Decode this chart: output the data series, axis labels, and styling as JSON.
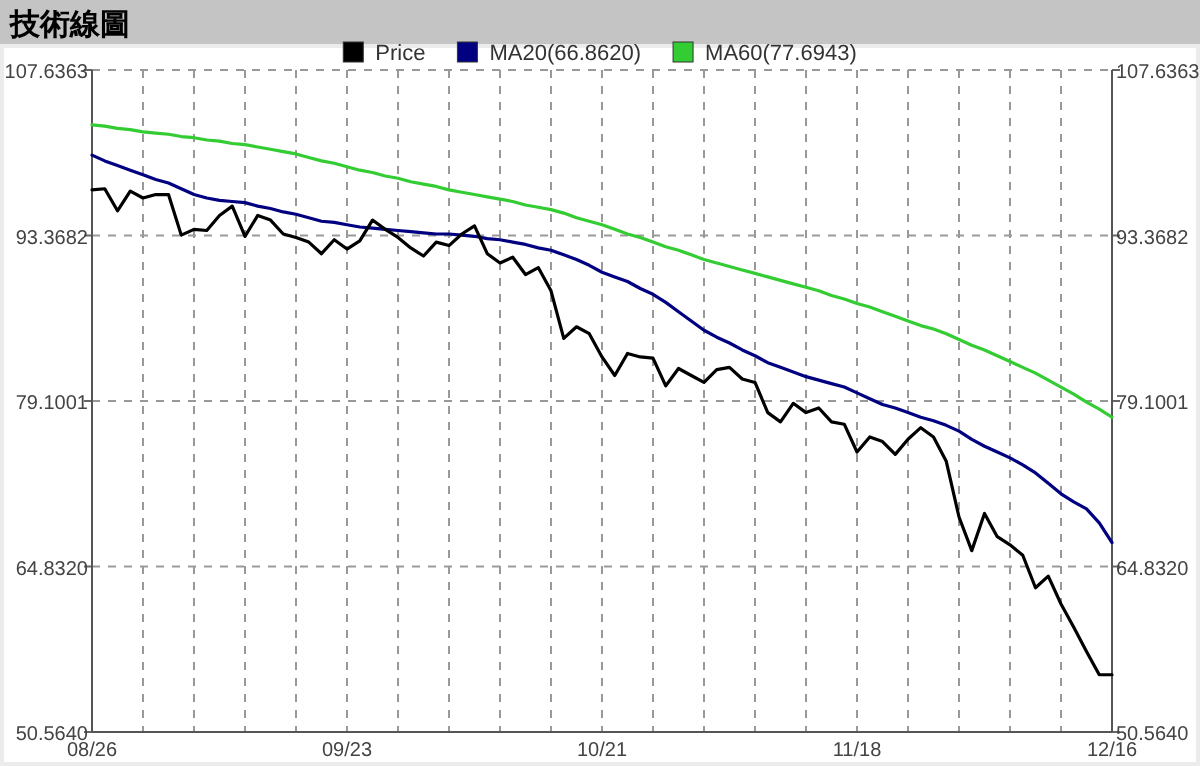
{
  "chart_data": {
    "type": "line",
    "title": "技術線圖",
    "legend": "top",
    "grid": true,
    "line_style": "solid",
    "categories": [
      "08/26",
      null,
      null,
      null,
      null,
      null,
      null,
      null,
      null,
      null,
      null,
      null,
      null,
      null,
      null,
      null,
      null,
      null,
      null,
      null,
      "09/23",
      null,
      null,
      null,
      null,
      null,
      null,
      null,
      null,
      null,
      null,
      null,
      null,
      null,
      null,
      null,
      null,
      null,
      null,
      null,
      "10/21",
      null,
      null,
      null,
      null,
      null,
      null,
      null,
      null,
      null,
      null,
      null,
      null,
      null,
      null,
      null,
      null,
      null,
      null,
      null,
      "11/18",
      null,
      null,
      null,
      null,
      null,
      null,
      null,
      null,
      null,
      null,
      null,
      null,
      null,
      null,
      null,
      null,
      null,
      null,
      null,
      "12/16"
    ],
    "ylim": [
      50.564,
      107.6363
    ],
    "yticks": [
      {
        "value": 50.564,
        "label": "50.5640"
      },
      {
        "value": 64.832,
        "label": "64.8320"
      },
      79.1001,
      93.3682,
      107.6363
    ],
    "y2lim": [
      50.564,
      107.6363
    ],
    "y2ticks": [
      {
        "value": 50.564,
        "label": "50.5640"
      },
      {
        "value": 64.832,
        "label": "64.8320"
      },
      79.1001,
      93.3682,
      107.6363
    ],
    "series": [
      {
        "name": "Price",
        "color": "#000000",
        "values": [
          97.3,
          97.4,
          95.5,
          97.2,
          96.6,
          96.9,
          96.9,
          93.4,
          93.9,
          93.8,
          95.1,
          95.9,
          93.3,
          95.1,
          94.7,
          93.5,
          93.2,
          92.8,
          91.8,
          93.0,
          92.2,
          92.9,
          94.7,
          93.9,
          93.2,
          92.3,
          91.6,
          92.8,
          92.5,
          93.5,
          94.2,
          91.8,
          91.0,
          91.5,
          90.0,
          90.6,
          88.6,
          84.5,
          85.5,
          84.9,
          82.9,
          81.3,
          83.2,
          82.9,
          82.8,
          80.4,
          81.9,
          81.3,
          80.7,
          81.8,
          82.0,
          81.0,
          80.7,
          78.1,
          77.3,
          78.9,
          78.1,
          78.5,
          77.3,
          77.1,
          74.7,
          76.0,
          75.6,
          74.5,
          75.8,
          76.8,
          76.0,
          73.9,
          69.1,
          66.2,
          69.4,
          67.4,
          66.7,
          65.8,
          63.0,
          64.0,
          61.6,
          59.6,
          57.5,
          55.5,
          55.5
        ]
      },
      {
        "name": "MA20(66.8620)",
        "color": "#000080",
        "values": [
          100.3,
          99.8,
          99.4,
          99.0,
          98.6,
          98.2,
          97.9,
          97.4,
          96.9,
          96.6,
          96.4,
          96.3,
          96.2,
          95.9,
          95.7,
          95.4,
          95.2,
          94.9,
          94.6,
          94.5,
          94.3,
          94.1,
          94.0,
          93.9,
          93.8,
          93.7,
          93.6,
          93.5,
          93.5,
          93.4,
          93.3,
          93.1,
          93.0,
          92.8,
          92.6,
          92.3,
          92.1,
          91.7,
          91.3,
          90.8,
          90.2,
          89.8,
          89.4,
          88.8,
          88.3,
          87.6,
          86.8,
          86.0,
          85.2,
          84.6,
          84.1,
          83.5,
          83.0,
          82.4,
          82.0,
          81.6,
          81.2,
          80.9,
          80.6,
          80.3,
          79.8,
          79.3,
          78.8,
          78.5,
          78.1,
          77.7,
          77.4,
          77.0,
          76.5,
          75.8,
          75.2,
          74.7,
          74.2,
          73.6,
          72.9,
          72.0,
          71.1,
          70.4,
          69.8,
          68.6,
          66.9
        ]
      },
      {
        "name": "MA60(77.6943)",
        "color": "#33cc33",
        "values": [
          102.9,
          102.8,
          102.6,
          102.5,
          102.3,
          102.2,
          102.1,
          101.9,
          101.8,
          101.6,
          101.5,
          101.3,
          101.2,
          101.0,
          100.8,
          100.6,
          100.4,
          100.1,
          99.8,
          99.6,
          99.3,
          99.0,
          98.8,
          98.5,
          98.3,
          98.0,
          97.8,
          97.6,
          97.3,
          97.1,
          96.9,
          96.7,
          96.5,
          96.3,
          96.0,
          95.8,
          95.6,
          95.3,
          94.9,
          94.6,
          94.3,
          93.9,
          93.5,
          93.2,
          92.8,
          92.4,
          92.1,
          91.7,
          91.3,
          91.0,
          90.7,
          90.4,
          90.1,
          89.8,
          89.5,
          89.2,
          88.9,
          88.6,
          88.2,
          87.9,
          87.5,
          87.2,
          86.8,
          86.4,
          86.0,
          85.6,
          85.3,
          84.9,
          84.4,
          83.9,
          83.5,
          83.0,
          82.5,
          82.0,
          81.5,
          80.9,
          80.3,
          79.7,
          79.0,
          78.4,
          77.7
        ]
      }
    ]
  }
}
